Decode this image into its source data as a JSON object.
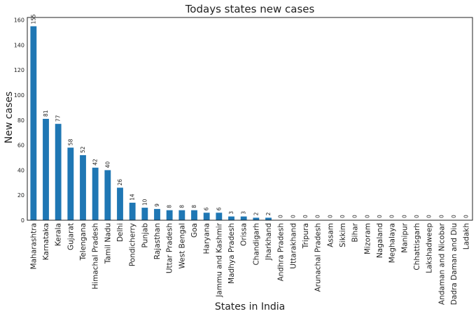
{
  "chart_data": {
    "type": "bar",
    "title": "Todays states new cases",
    "xlabel": "States in India",
    "ylabel": "New cases",
    "ylim": [
      0,
      162
    ],
    "yticks": [
      0,
      20,
      40,
      60,
      80,
      100,
      120,
      140,
      160
    ],
    "grid": false,
    "bar_color": "#1f77b4",
    "categories": [
      "Maharashtra",
      "Karnataka",
      "Kerala",
      "Gujarat",
      "Telengana",
      "Himachal Pradesh",
      "Tamil Nadu",
      "Delhi",
      "Pondicherry",
      "Punjab",
      "Rajasthan",
      "Uttar Pradesh",
      "West Bengal",
      "Goa",
      "Haryana",
      "Jammu and Kashmir",
      "Madhya Pradesh",
      "Orissa",
      "Chandigarh",
      "Jharkhand",
      "Andhra Pradesh",
      "Uttarakhand",
      "Tripura",
      "Arunachal Pradesh",
      "Assam",
      "Sikkim",
      "Bihar",
      "Mizoram",
      "Nagaland",
      "Meghalaya",
      "Manipur",
      "Chhattisgarh",
      "Lakshadweep",
      "Andaman and Nicobar",
      "Dadra Daman and Diu",
      "Ladakh"
    ],
    "values": [
      155,
      81,
      77,
      58,
      52,
      42,
      40,
      26,
      14,
      10,
      9,
      8,
      8,
      8,
      6,
      6,
      3,
      3,
      2,
      2,
      0,
      0,
      0,
      0,
      0,
      0,
      0,
      0,
      0,
      0,
      0,
      0,
      0,
      0,
      0,
      0
    ]
  }
}
